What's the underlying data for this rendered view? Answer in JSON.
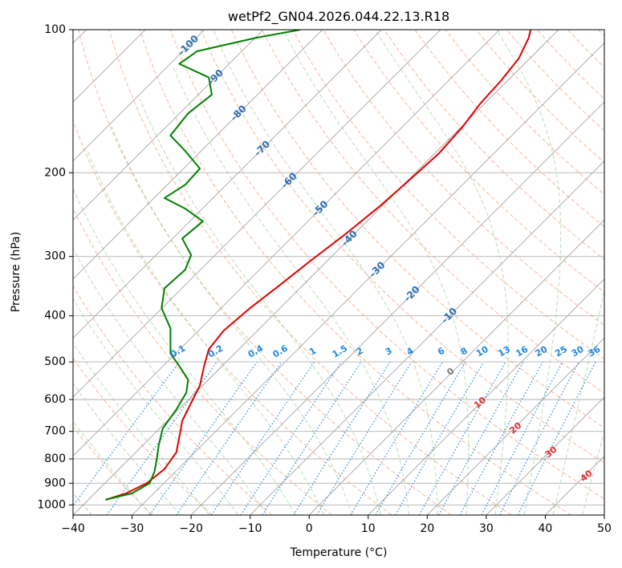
{
  "chart_data": {
    "type": "line",
    "subtype": "skew-T log-P diagram",
    "title": "wetPf2_GN04.2026.044.22.13.R18",
    "xlabel": "Temperature (°C)",
    "ylabel": "Pressure (hPa)",
    "xlim": [
      -40,
      50
    ],
    "ylim_pressure": [
      1050,
      100
    ],
    "y_scale": "log",
    "x_ticks": [
      "−40",
      "−30",
      "−20",
      "−10",
      "0",
      "10",
      "20",
      "30",
      "40",
      "50"
    ],
    "y_ticks": [
      "100",
      "200",
      "300",
      "400",
      "500",
      "600",
      "700",
      "800",
      "900",
      "1000"
    ],
    "grid": true,
    "colors": {
      "temperature": "#e00000",
      "dewpoint": "#008000",
      "isotherm": "#9a9a9a",
      "dry_adiabat": "#f4a582",
      "moist_adiabat": "#a6d8a0",
      "mixing_ratio": "#1e88e5",
      "isotherm_label": "#2e6db4",
      "moist_label": "#e03030",
      "tan_curve": "#d8c2a0"
    },
    "isotherm_labels": [
      "-100",
      "-90",
      "-80",
      "-70",
      "-60",
      "-50",
      "-40",
      "-30",
      "-20",
      "-10"
    ],
    "mixing_ratio_labels": [
      "0.1",
      "0.2",
      "0.4",
      "0.6",
      "1",
      "1.5",
      "2",
      "3",
      "4",
      "6",
      "8",
      "10",
      "13",
      "16",
      "20",
      "25",
      "30",
      "36"
    ],
    "moist_adiabat_labels": [
      "0",
      "10",
      "20",
      "30",
      "40"
    ],
    "series": [
      {
        "key": "temperature",
        "points": [
          [
            -34.5,
            975
          ],
          [
            -31,
            945
          ],
          [
            -27.5,
            900
          ],
          [
            -24.5,
            840
          ],
          [
            -22.5,
            775
          ],
          [
            -22,
            720
          ],
          [
            -21.5,
            665
          ],
          [
            -20,
            610
          ],
          [
            -18.5,
            560
          ],
          [
            -17.8,
            510
          ],
          [
            -17,
            470
          ],
          [
            -14.5,
            430
          ],
          [
            -10,
            385
          ],
          [
            -5,
            345
          ],
          [
            0,
            308
          ],
          [
            6,
            270
          ],
          [
            12,
            235
          ],
          [
            17,
            207
          ],
          [
            22,
            182
          ],
          [
            26,
            160
          ],
          [
            29,
            143
          ],
          [
            32.5,
            128
          ],
          [
            35.5,
            115
          ],
          [
            37.2,
            104
          ],
          [
            37.5,
            100
          ]
        ]
      },
      {
        "key": "dewpoint",
        "points": [
          [
            -34.5,
            975
          ],
          [
            -30,
            945
          ],
          [
            -27,
            900
          ],
          [
            -26.2,
            850
          ],
          [
            -25.8,
            800
          ],
          [
            -25.5,
            750
          ],
          [
            -24.8,
            690
          ],
          [
            -22.5,
            630
          ],
          [
            -20.8,
            580
          ],
          [
            -20.5,
            545
          ],
          [
            -22,
            510
          ],
          [
            -23.5,
            480
          ],
          [
            -23.5,
            425
          ],
          [
            -25,
            385
          ],
          [
            -24.5,
            350
          ],
          [
            -21,
            320
          ],
          [
            -20,
            298
          ],
          [
            -21.5,
            275
          ],
          [
            -18,
            253
          ],
          [
            -21,
            238
          ],
          [
            -24.5,
            226
          ],
          [
            -21,
            212
          ],
          [
            -18.5,
            196
          ],
          [
            -21,
            180
          ],
          [
            -23.5,
            167
          ],
          [
            -20.5,
            150
          ],
          [
            -16.5,
            137
          ],
          [
            -17,
            126
          ],
          [
            -22,
            118
          ],
          [
            -19,
            111
          ],
          [
            -9,
            104
          ],
          [
            -1.5,
            100
          ]
        ]
      }
    ]
  }
}
